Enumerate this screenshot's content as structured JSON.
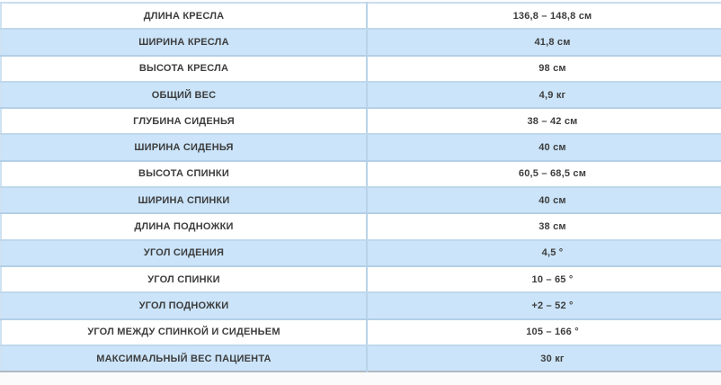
{
  "colors": {
    "row_alt_bg": "#cbe4f9",
    "grid_border": "#bed8ec",
    "column_divider": "#b9d3e9",
    "table_bottom_border": "#aeb9c3",
    "text": "#3d3d3d"
  },
  "table": {
    "rows": [
      {
        "label": "ДЛИНА КРЕСЛА",
        "value": "136,8 – 148,8 см"
      },
      {
        "label": "ШИРИНА КРЕСЛА",
        "value": "41,8 см"
      },
      {
        "label": "ВЫСОТА КРЕСЛА",
        "value": "98 см"
      },
      {
        "label": "ОБЩИЙ ВЕС",
        "value": "4,9 кг"
      },
      {
        "label": "ГЛУБИНА СИДЕНЬЯ",
        "value": "38 – 42 см"
      },
      {
        "label": "ШИРИНА СИДЕНЬЯ",
        "value": "40 см"
      },
      {
        "label": "ВЫСОТА СПИНКИ",
        "value": "60,5 – 68,5 см"
      },
      {
        "label": "ШИРИНА СПИНКИ",
        "value": "40 см"
      },
      {
        "label": "ДЛИНА ПОДНОЖКИ",
        "value": "38 см"
      },
      {
        "label": "УГОЛ СИДЕНИЯ",
        "value": "4,5 °"
      },
      {
        "label": "УГОЛ СПИНКИ",
        "value": "10 – 65 °"
      },
      {
        "label": "УГОЛ ПОДНОЖКИ",
        "value": "+2 – 52 °"
      },
      {
        "label": "УГОЛ МЕЖДУ СПИНКОЙ И СИДЕНЬЕМ",
        "value": "105 – 166 °"
      },
      {
        "label": "МАКСИМАЛЬНЫЙ ВЕС ПАЦИЕНТА",
        "value": "30 кг"
      }
    ]
  }
}
